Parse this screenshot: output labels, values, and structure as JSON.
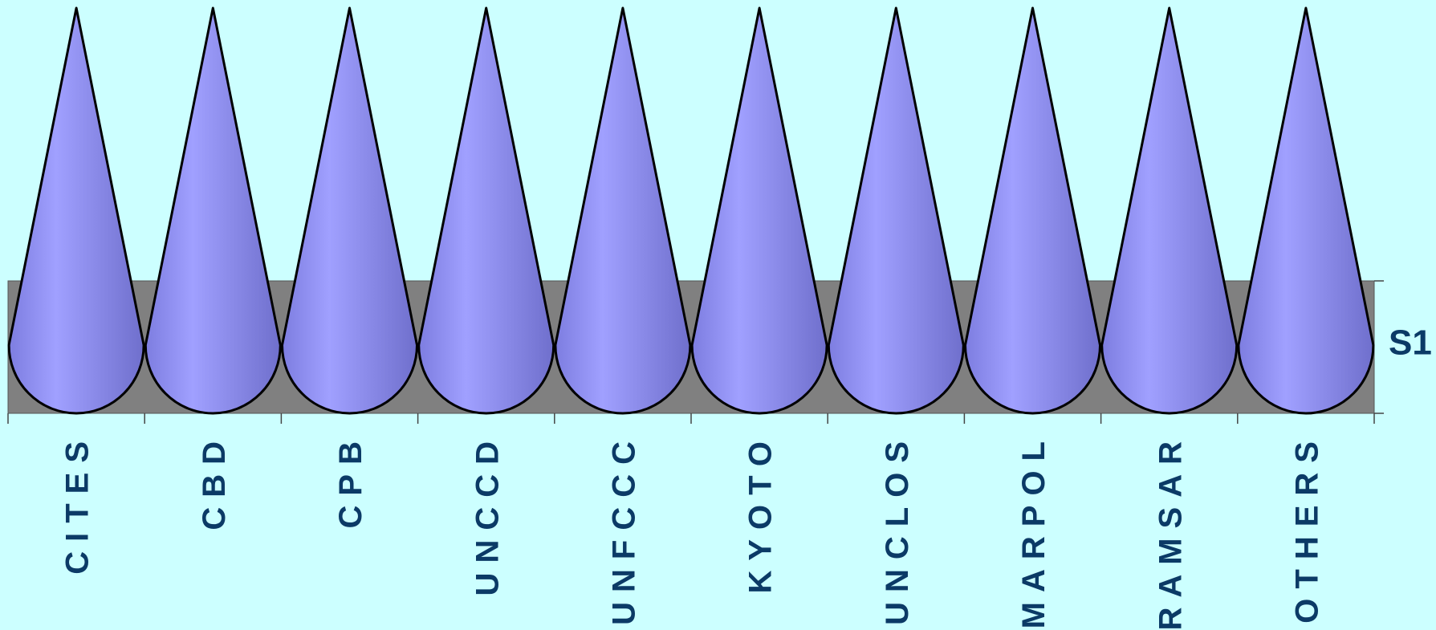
{
  "chart_data": {
    "type": "cone",
    "categories": [
      "CITES",
      "CBD",
      "CPB",
      "UNCCD",
      "UNFCCC",
      "KYOTO",
      "UNCLOS",
      "MARPOL",
      "RAMSAR",
      "OTHERS"
    ],
    "series": [
      {
        "name": "S1",
        "color": "#9999ff",
        "values": [
          1,
          1,
          1,
          1,
          1,
          1,
          1,
          1,
          1,
          1
        ]
      }
    ]
  }
}
